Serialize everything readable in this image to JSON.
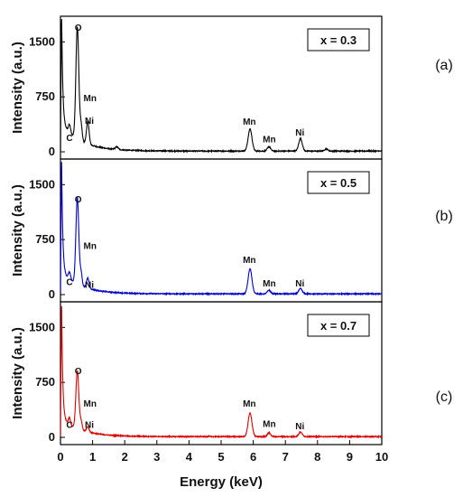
{
  "chart_data": {
    "type": "line",
    "xlabel": "Energy (keV)",
    "xlim": [
      0,
      10
    ],
    "x_ticks": [
      "0",
      "1",
      "2",
      "3",
      "4",
      "5",
      "6",
      "7",
      "8",
      "9",
      "10"
    ],
    "grid": false,
    "legend": "none",
    "panels": [
      {
        "letter": "(a)",
        "badge": "x = 0.3",
        "color": "#000000",
        "ylabel": "Intensity (a.u.)",
        "ylim": [
          0,
          1800
        ],
        "y_ticks": [
          {
            "value": 0,
            "label": "0"
          },
          {
            "value": 750,
            "label": "750"
          },
          {
            "value": 1500,
            "label": "1500"
          }
        ],
        "peak_labels": [
          {
            "text": "C",
            "x": 0.28,
            "y": 150
          },
          {
            "text": "O",
            "x": 0.55,
            "y": 1650
          },
          {
            "text": "Mn",
            "x": 0.92,
            "y": 690
          },
          {
            "text": "Ni",
            "x": 0.9,
            "y": 380
          },
          {
            "text": "Mn",
            "x": 5.88,
            "y": 370
          },
          {
            "text": "Mn",
            "x": 6.5,
            "y": 130
          },
          {
            "text": "Ni",
            "x": 7.45,
            "y": 220
          }
        ],
        "spectrum": {
          "baseline": 10,
          "spike_top": 1800,
          "decay_end": 380,
          "peaks": [
            {
              "x": 0.28,
              "y": 110,
              "w": 0.035
            },
            {
              "x": 0.525,
              "y": 1530,
              "w": 0.045
            },
            {
              "x": 0.64,
              "y": 220,
              "w": 0.035
            },
            {
              "x": 0.85,
              "y": 310,
              "w": 0.04
            },
            {
              "x": 1.75,
              "y": 35,
              "w": 0.05
            },
            {
              "x": 5.9,
              "y": 300,
              "w": 0.06
            },
            {
              "x": 6.49,
              "y": 60,
              "w": 0.05
            },
            {
              "x": 7.47,
              "y": 170,
              "w": 0.055
            },
            {
              "x": 8.27,
              "y": 30,
              "w": 0.05
            }
          ]
        }
      },
      {
        "letter": "(b)",
        "badge": "x = 0.5",
        "color": "#0000cc",
        "ylabel": "Intensity (a.u.)",
        "ylim": [
          0,
          1800
        ],
        "y_ticks": [
          {
            "value": 0,
            "label": "0"
          },
          {
            "value": 750,
            "label": "750"
          },
          {
            "value": 1500,
            "label": "1500"
          }
        ],
        "peak_labels": [
          {
            "text": "C",
            "x": 0.28,
            "y": 130
          },
          {
            "text": "O",
            "x": 0.55,
            "y": 1260
          },
          {
            "text": "Mn",
            "x": 0.92,
            "y": 620
          },
          {
            "text": "Ni",
            "x": 0.9,
            "y": 90
          },
          {
            "text": "Mn",
            "x": 5.88,
            "y": 430
          },
          {
            "text": "Mn",
            "x": 6.5,
            "y": 110
          },
          {
            "text": "Ni",
            "x": 7.45,
            "y": 110
          }
        ],
        "spectrum": {
          "baseline": 10,
          "spike_top": 1780,
          "decay_end": 300,
          "peaks": [
            {
              "x": 0.28,
              "y": 100,
              "w": 0.035
            },
            {
              "x": 0.525,
              "y": 1180,
              "w": 0.045
            },
            {
              "x": 0.64,
              "y": 180,
              "w": 0.035
            },
            {
              "x": 0.85,
              "y": 140,
              "w": 0.04
            },
            {
              "x": 5.9,
              "y": 340,
              "w": 0.06
            },
            {
              "x": 6.49,
              "y": 50,
              "w": 0.05
            },
            {
              "x": 7.47,
              "y": 70,
              "w": 0.055
            }
          ]
        }
      },
      {
        "letter": "(c)",
        "badge": "x = 0.7",
        "color": "#dd0000",
        "ylabel": "Intensity (a.u.)",
        "ylim": [
          0,
          1800
        ],
        "y_ticks": [
          {
            "value": 0,
            "label": "0"
          },
          {
            "value": 750,
            "label": "750"
          },
          {
            "value": 1500,
            "label": "1500"
          }
        ],
        "peak_labels": [
          {
            "text": "C",
            "x": 0.28,
            "y": 130
          },
          {
            "text": "O",
            "x": 0.55,
            "y": 860
          },
          {
            "text": "Mn",
            "x": 0.92,
            "y": 420
          },
          {
            "text": "Ni",
            "x": 0.9,
            "y": 130
          },
          {
            "text": "Mn",
            "x": 5.88,
            "y": 420
          },
          {
            "text": "Mn",
            "x": 6.5,
            "y": 140
          },
          {
            "text": "Ni",
            "x": 7.45,
            "y": 110
          }
        ],
        "spectrum": {
          "baseline": 10,
          "spike_top": 1800,
          "decay_end": 250,
          "peaks": [
            {
              "x": 0.28,
              "y": 90,
              "w": 0.035
            },
            {
              "x": 0.525,
              "y": 790,
              "w": 0.045
            },
            {
              "x": 0.64,
              "y": 120,
              "w": 0.035
            },
            {
              "x": 0.85,
              "y": 70,
              "w": 0.04
            },
            {
              "x": 5.9,
              "y": 320,
              "w": 0.06
            },
            {
              "x": 6.49,
              "y": 50,
              "w": 0.05
            },
            {
              "x": 7.47,
              "y": 60,
              "w": 0.055
            }
          ]
        }
      }
    ]
  }
}
